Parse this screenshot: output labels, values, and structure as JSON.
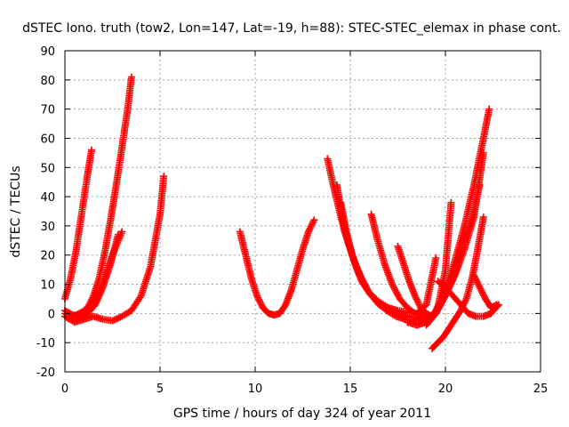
{
  "chart_data": {
    "type": "scatter",
    "title": "dSTEC Iono. truth (tow2, Lon=147, Lat=-19, h=88): STEC-STEC_elemax in phase cont.",
    "xlabel": "GPS time / hours of day 324 of year 2011",
    "ylabel": "dSTEC  / TECUs",
    "xlim": [
      0,
      25
    ],
    "ylim": [
      -20,
      90
    ],
    "xticks": [
      "0",
      "5",
      "10",
      "15",
      "20",
      "25"
    ],
    "yticks": [
      "-20",
      "-10",
      "0",
      "10",
      "20",
      "30",
      "40",
      "50",
      "60",
      "70",
      "80",
      "90"
    ],
    "grid": true,
    "marker": "+",
    "color": "#ff0000",
    "series": [
      {
        "x": [
          0.0,
          0.3,
          0.6,
          0.9,
          1.2,
          1.4
        ],
        "y": [
          5,
          12,
          22,
          35,
          48,
          56
        ]
      },
      {
        "x": [
          0.0,
          0.3,
          0.6,
          0.9,
          1.2,
          1.5,
          1.8,
          2.1,
          2.4,
          2.7,
          3.0,
          3.3,
          3.5
        ],
        "y": [
          0,
          -1,
          -0.5,
          0.5,
          2,
          6,
          12,
          21,
          32,
          44,
          57,
          70,
          81
        ]
      },
      {
        "x": [
          0.1,
          0.5,
          0.9,
          1.3,
          1.7,
          2.1,
          2.5,
          3.0
        ],
        "y": [
          -1,
          -1.5,
          -1,
          1,
          5,
          12,
          20,
          28
        ]
      },
      {
        "x": [
          0.0,
          0.4,
          0.8,
          1.2,
          1.6,
          2.0,
          2.4,
          2.8
        ],
        "y": [
          1,
          -0.5,
          -1,
          0,
          3,
          9,
          17,
          27
        ]
      },
      {
        "x": [
          0.0,
          0.5,
          1.0,
          1.5,
          2.0,
          2.5,
          3.0,
          3.5,
          4.0,
          4.5,
          5.0,
          5.2
        ],
        "y": [
          -1,
          -3,
          -2,
          -1,
          -2,
          -2.5,
          -1,
          1,
          6,
          16,
          34,
          47
        ]
      },
      {
        "x": [
          9.2,
          9.5,
          9.8,
          10.1,
          10.4,
          10.7,
          11.0,
          11.3,
          11.6,
          11.9,
          12.2,
          12.5,
          12.8,
          13.1
        ],
        "y": [
          28,
          20,
          12,
          6,
          2,
          0,
          -0.5,
          0,
          3,
          8,
          15,
          22,
          28,
          32
        ]
      },
      {
        "x": [
          13.8,
          14.1,
          14.4,
          14.7,
          15.0,
          15.3,
          15.6,
          16.0,
          16.5,
          17.0,
          17.5,
          18.0,
          18.5,
          19.0,
          19.5
        ],
        "y": [
          53,
          44,
          36,
          28,
          22,
          16,
          11,
          7,
          4,
          2,
          1,
          0.5,
          0,
          3,
          19
        ]
      },
      {
        "x": [
          14.3,
          14.6,
          14.9,
          15.2,
          15.6,
          16.0,
          16.5,
          17.0,
          17.5,
          18.0,
          18.5,
          19.0
        ],
        "y": [
          44,
          32,
          24,
          18,
          12,
          7,
          3,
          1,
          0,
          -1,
          -1.5,
          -1
        ]
      },
      {
        "x": [
          14.5,
          14.8,
          15.1,
          15.5,
          15.9,
          16.4,
          16.9,
          17.4,
          17.9,
          18.4
        ],
        "y": [
          38,
          28,
          20,
          13,
          8,
          4,
          1,
          -1,
          -2,
          -2.5
        ]
      },
      {
        "x": [
          16.1,
          16.4,
          16.8,
          17.2,
          17.6,
          18.0,
          18.4,
          18.8,
          19.2
        ],
        "y": [
          34,
          26,
          17,
          10,
          5,
          2,
          0,
          -1,
          -1.5
        ]
      },
      {
        "x": [
          17.5,
          17.8,
          18.1,
          18.4,
          18.7,
          19.0,
          19.3,
          19.6,
          20.0,
          20.3
        ],
        "y": [
          23,
          17,
          11,
          6,
          2,
          0,
          -1,
          2,
          15,
          38
        ]
      },
      {
        "x": [
          18.0,
          18.5,
          19.0,
          19.5,
          20.0,
          20.5,
          21.0,
          21.5,
          22.0,
          22.3
        ],
        "y": [
          -3,
          -4,
          -3,
          1,
          8,
          18,
          30,
          44,
          60,
          70
        ]
      },
      {
        "x": [
          18.5,
          19.0,
          19.5,
          20.0,
          20.5,
          21.0,
          21.5,
          21.8
        ],
        "y": [
          -2,
          -3,
          0,
          6,
          14,
          24,
          35,
          44
        ]
      },
      {
        "x": [
          19.0,
          19.5,
          20.0,
          20.5,
          21.0,
          21.5,
          22.0
        ],
        "y": [
          -4,
          0,
          6,
          13,
          22,
          33,
          55
        ]
      },
      {
        "x": [
          19.3,
          19.6,
          19.9,
          20.2,
          20.5,
          20.8,
          21.1,
          21.4,
          21.7,
          22.0
        ],
        "y": [
          -12,
          -10,
          -8,
          -5,
          -2,
          1,
          5,
          12,
          22,
          33
        ]
      },
      {
        "x": [
          19.6,
          20.0,
          20.4,
          20.8,
          21.2,
          21.6,
          22.0,
          22.4,
          22.8
        ],
        "y": [
          11,
          9,
          6,
          3,
          0,
          -1,
          -1,
          0,
          3
        ]
      },
      {
        "x": [
          21.5,
          21.8,
          22.1,
          22.4,
          22.7
        ],
        "y": [
          13,
          9,
          5,
          2,
          3
        ]
      }
    ]
  }
}
